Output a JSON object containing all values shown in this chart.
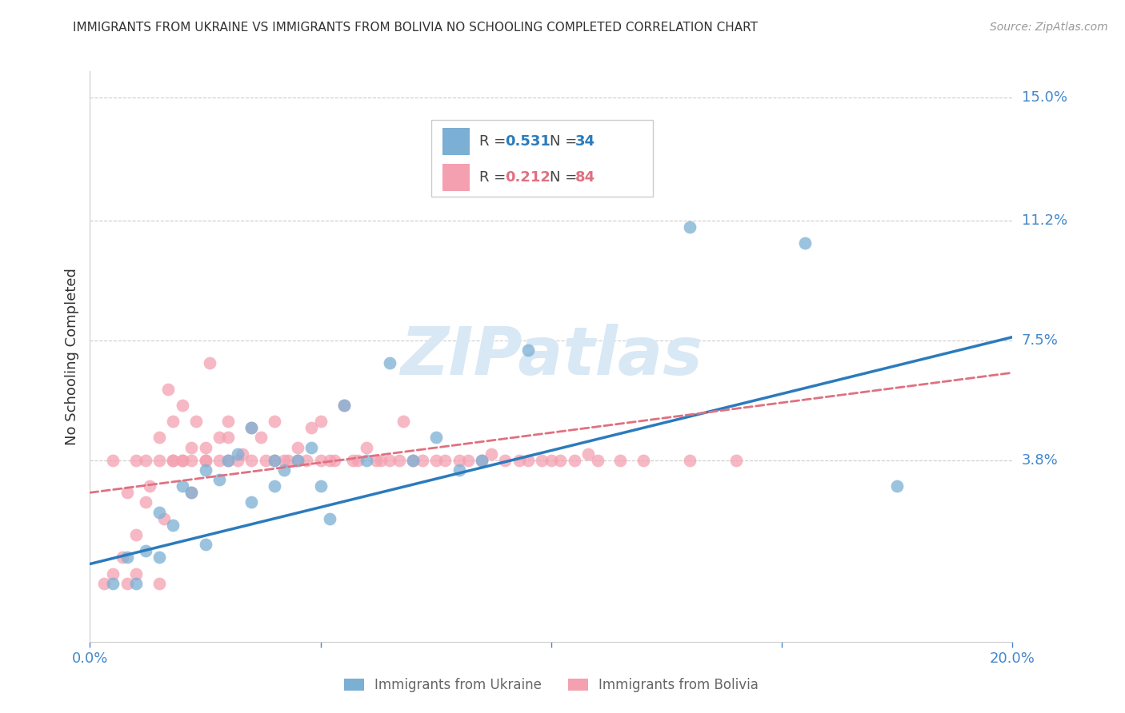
{
  "title": "IMMIGRANTS FROM UKRAINE VS IMMIGRANTS FROM BOLIVIA NO SCHOOLING COMPLETED CORRELATION CHART",
  "source": "Source: ZipAtlas.com",
  "ylabel": "No Schooling Completed",
  "y_tick_labels": [
    "15.0%",
    "11.2%",
    "7.5%",
    "3.8%"
  ],
  "y_tick_vals": [
    0.15,
    0.112,
    0.075,
    0.038
  ],
  "xlim": [
    0.0,
    0.2
  ],
  "ylim": [
    -0.018,
    0.158
  ],
  "ukraine_R": "0.531",
  "ukraine_N": "34",
  "bolivia_R": "0.212",
  "bolivia_N": "84",
  "ukraine_color": "#7BAFD4",
  "bolivia_color": "#F4A0B0",
  "ukraine_line_color": "#2B7BBD",
  "bolivia_line_color": "#E07080",
  "legend_label_ukraine": "Immigrants from Ukraine",
  "legend_label_bolivia": "Immigrants from Bolivia",
  "ukraine_scatter_x": [
    0.005,
    0.008,
    0.01,
    0.012,
    0.015,
    0.015,
    0.018,
    0.02,
    0.022,
    0.025,
    0.025,
    0.028,
    0.03,
    0.032,
    0.035,
    0.035,
    0.04,
    0.04,
    0.042,
    0.045,
    0.048,
    0.05,
    0.052,
    0.055,
    0.06,
    0.065,
    0.07,
    0.075,
    0.08,
    0.085,
    0.095,
    0.13,
    0.155,
    0.175
  ],
  "ukraine_scatter_y": [
    0.0,
    0.008,
    0.0,
    0.01,
    0.008,
    0.022,
    0.018,
    0.03,
    0.028,
    0.012,
    0.035,
    0.032,
    0.038,
    0.04,
    0.025,
    0.048,
    0.03,
    0.038,
    0.035,
    0.038,
    0.042,
    0.03,
    0.02,
    0.055,
    0.038,
    0.068,
    0.038,
    0.045,
    0.035,
    0.038,
    0.072,
    0.11,
    0.105,
    0.03
  ],
  "bolivia_scatter_x": [
    0.003,
    0.005,
    0.005,
    0.007,
    0.008,
    0.008,
    0.01,
    0.01,
    0.01,
    0.012,
    0.012,
    0.013,
    0.015,
    0.015,
    0.015,
    0.016,
    0.017,
    0.018,
    0.018,
    0.018,
    0.02,
    0.02,
    0.02,
    0.022,
    0.022,
    0.022,
    0.023,
    0.025,
    0.025,
    0.025,
    0.026,
    0.028,
    0.028,
    0.03,
    0.03,
    0.03,
    0.032,
    0.033,
    0.035,
    0.035,
    0.037,
    0.038,
    0.04,
    0.04,
    0.042,
    0.043,
    0.045,
    0.045,
    0.047,
    0.048,
    0.05,
    0.05,
    0.052,
    0.053,
    0.055,
    0.057,
    0.058,
    0.06,
    0.062,
    0.063,
    0.065,
    0.067,
    0.068,
    0.07,
    0.072,
    0.075,
    0.077,
    0.08,
    0.082,
    0.085,
    0.087,
    0.09,
    0.093,
    0.095,
    0.098,
    0.1,
    0.102,
    0.105,
    0.108,
    0.11,
    0.115,
    0.12,
    0.13,
    0.14
  ],
  "bolivia_scatter_y": [
    0.0,
    0.003,
    0.038,
    0.008,
    0.0,
    0.028,
    0.003,
    0.015,
    0.038,
    0.038,
    0.025,
    0.03,
    0.0,
    0.038,
    0.045,
    0.02,
    0.06,
    0.038,
    0.038,
    0.05,
    0.038,
    0.055,
    0.038,
    0.038,
    0.042,
    0.028,
    0.05,
    0.038,
    0.038,
    0.042,
    0.068,
    0.038,
    0.045,
    0.038,
    0.045,
    0.05,
    0.038,
    0.04,
    0.038,
    0.048,
    0.045,
    0.038,
    0.038,
    0.05,
    0.038,
    0.038,
    0.038,
    0.042,
    0.038,
    0.048,
    0.038,
    0.05,
    0.038,
    0.038,
    0.055,
    0.038,
    0.038,
    0.042,
    0.038,
    0.038,
    0.038,
    0.038,
    0.05,
    0.038,
    0.038,
    0.038,
    0.038,
    0.038,
    0.038,
    0.038,
    0.04,
    0.038,
    0.038,
    0.038,
    0.038,
    0.038,
    0.038,
    0.038,
    0.04,
    0.038,
    0.038,
    0.038,
    0.038,
    0.038
  ],
  "ukraine_line_x0": 0.0,
  "ukraine_line_x1": 0.2,
  "ukraine_line_y0": 0.006,
  "ukraine_line_y1": 0.076,
  "bolivia_line_x0": 0.0,
  "bolivia_line_x1": 0.2,
  "bolivia_line_y0": 0.028,
  "bolivia_line_y1": 0.065,
  "watermark_text": "ZIPatlas",
  "watermark_color": "#D8E8F5",
  "background_color": "#ffffff",
  "grid_color": "#cccccc",
  "axis_label_color": "#4488CC",
  "title_color": "#333333"
}
